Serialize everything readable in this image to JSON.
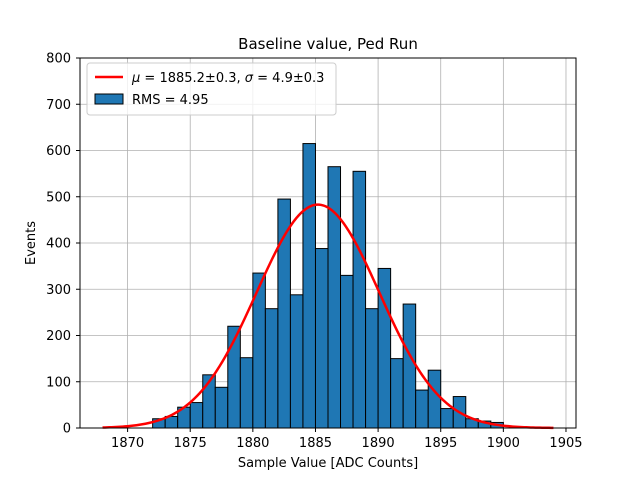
{
  "chart_data": {
    "type": "bar",
    "title": "Baseline value, Ped Run",
    "xlabel": "Sample Value [ADC Counts]",
    "ylabel": "Events",
    "xlim": [
      1866.2,
      1905.8
    ],
    "ylim": [
      0,
      800
    ],
    "xticks": [
      1870,
      1875,
      1880,
      1885,
      1890,
      1895,
      1900,
      1905
    ],
    "yticks": [
      0,
      100,
      200,
      300,
      400,
      500,
      600,
      700,
      800
    ],
    "grid": true,
    "legend_position": "top-left",
    "bin_width": 1,
    "histogram": {
      "name": "RMS = 4.95",
      "color": "#1f77b4",
      "edgecolor": "#000000",
      "bins": [
        1872,
        1873,
        1874,
        1875,
        1876,
        1877,
        1878,
        1879,
        1880,
        1881,
        1882,
        1883,
        1884,
        1885,
        1886,
        1887,
        1888,
        1889,
        1890,
        1891,
        1892,
        1893,
        1894,
        1895,
        1896,
        1897,
        1898,
        1899
      ],
      "values": [
        20,
        25,
        45,
        55,
        115,
        88,
        220,
        152,
        335,
        258,
        495,
        288,
        615,
        388,
        565,
        330,
        555,
        258,
        345,
        150,
        268,
        82,
        125,
        42,
        68,
        20,
        15,
        12
      ]
    },
    "fit": {
      "name": "μ = 1885.2±0.3, σ = 4.9±0.3",
      "name_mu": "μ",
      "name_mu_value": " = 1885.2±0.3, ",
      "name_sigma": "σ",
      "name_sigma_value": " = 4.9±0.3",
      "type": "gaussian",
      "mu": 1885.2,
      "sigma": 4.9,
      "amplitude": 483,
      "x_range": [
        1868,
        1904
      ],
      "color": "#ff0000"
    }
  }
}
